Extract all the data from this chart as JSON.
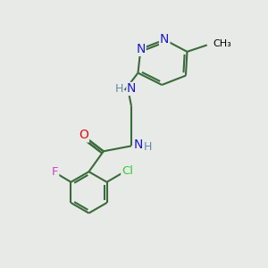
{
  "background_color": "#e8eae8",
  "bond_color": "#3a6b3a",
  "bond_width": 1.5,
  "atom_colors": {
    "N": "#1a1acc",
    "O": "#dd1111",
    "F": "#cc44cc",
    "Cl": "#33cc33",
    "C": "#000000",
    "H": "#6688aa"
  },
  "font_size": 9.5,
  "fig_size": [
    3.0,
    3.0
  ],
  "dpi": 100
}
